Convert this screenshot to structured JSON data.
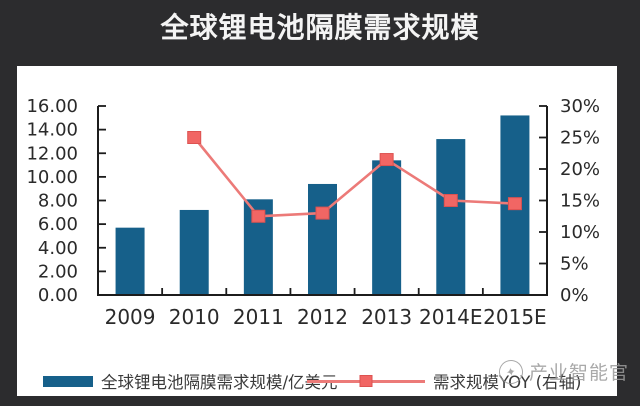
{
  "header": {
    "title": "全球锂电池隔膜需求规模"
  },
  "chart_data": {
    "type": "bar",
    "title": "全球锂电池隔膜需求规模",
    "categories": [
      "2009",
      "2010",
      "2011",
      "2012",
      "2013",
      "2014E",
      "2015E"
    ],
    "series": [
      {
        "name": "全球锂电池隔膜需求规模/亿美元",
        "type": "bar",
        "axis": "left",
        "values": [
          5.7,
          7.2,
          8.1,
          9.4,
          11.4,
          13.2,
          15.2
        ]
      },
      {
        "name": "需求规模YOY (右轴)",
        "type": "line",
        "axis": "right",
        "values": [
          null,
          25,
          12.5,
          13,
          21.5,
          15,
          14.5
        ]
      }
    ],
    "left_axis": {
      "min": 0,
      "max": 16,
      "step": 2,
      "tick_labels": [
        "0.00",
        "2.00",
        "4.00",
        "6.00",
        "8.00",
        "10.00",
        "12.00",
        "14.00",
        "16.00"
      ]
    },
    "right_axis": {
      "min": 0,
      "max": 30,
      "step": 5,
      "tick_labels": [
        "0%",
        "5%",
        "10%",
        "15%",
        "20%",
        "25%",
        "30%"
      ]
    },
    "grid": false,
    "legend_position": "bottom"
  },
  "legend": {
    "items": [
      {
        "label": "全球锂电池隔膜需求规模/亿美元",
        "swatch": "bar"
      },
      {
        "label": "需求规模YOY (右轴)",
        "swatch": "line"
      }
    ]
  },
  "watermark": {
    "icon": "✦",
    "text": "产业智能官"
  },
  "colors": {
    "background": "#2c2c2e",
    "panel": "#ffffff",
    "title_text": "#f4f4f4",
    "bar": "#16608a",
    "line": "#ec7a78",
    "marker_fill": "#f16664",
    "marker_stroke": "#dd5250",
    "axis": "#1c1c1c",
    "tick_label": "#2a2a2a",
    "legend_text": "#3a3a3a",
    "watermark": "#9b9b9b"
  }
}
